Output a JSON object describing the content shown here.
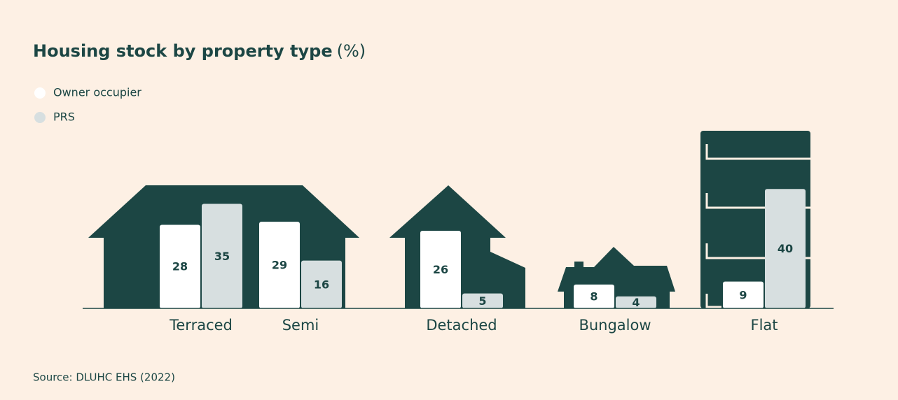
{
  "chart_data": {
    "type": "bar",
    "title": "Housing stock by property type",
    "unit": "(%)",
    "categories": [
      "Terraced",
      "Semi",
      "Detached",
      "Bungalow",
      "Flat"
    ],
    "series": [
      {
        "name": "Owner occupier",
        "color": "#ffffff",
        "values": [
          28,
          29,
          26,
          8,
          9
        ]
      },
      {
        "name": "PRS",
        "color": "#d7dfe0",
        "values": [
          35,
          16,
          5,
          4,
          40
        ]
      }
    ],
    "source": "Source: DLUHC EHS (2022)"
  }
}
